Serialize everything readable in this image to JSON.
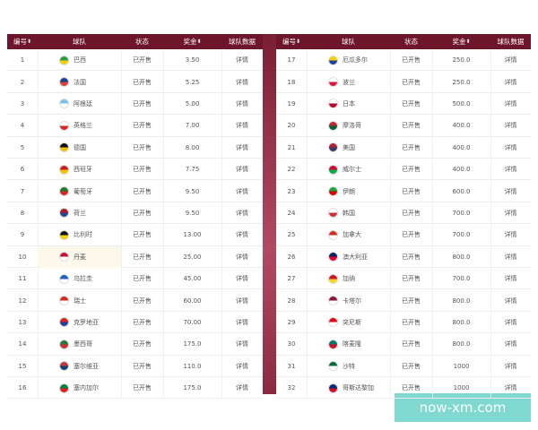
{
  "tables": [
    {
      "headers": [
        "编号",
        "球队",
        "状态",
        "奖金",
        "球队数据"
      ],
      "rows": [
        [
          "1",
          "巴西",
          "已开售",
          "3.50",
          "详情"
        ],
        [
          "2",
          "法国",
          "已开售",
          "5.25",
          "详情"
        ],
        [
          "3",
          "阿根廷",
          "已开售",
          "5.00",
          "详情"
        ],
        [
          "4",
          "英格兰",
          "已开售",
          "7.00",
          "详情"
        ],
        [
          "5",
          "德国",
          "已开售",
          "8.00",
          "详情"
        ],
        [
          "6",
          "西班牙",
          "已开售",
          "7.75",
          "详情"
        ],
        [
          "7",
          "葡萄牙",
          "已开售",
          "9.50",
          "详情"
        ],
        [
          "8",
          "荷兰",
          "已开售",
          "9.50",
          "详情"
        ],
        [
          "9",
          "比利时",
          "已开售",
          "13.00",
          "详情"
        ],
        [
          "10",
          "丹麦",
          "已开售",
          "25.00",
          "详情"
        ],
        [
          "11",
          "乌拉圭",
          "已开售",
          "45.00",
          "详情"
        ],
        [
          "12",
          "瑞士",
          "已开售",
          "60.00",
          "详情"
        ],
        [
          "13",
          "克罗地亚",
          "已开售",
          "70.00",
          "详情"
        ],
        [
          "14",
          "墨西哥",
          "已开售",
          "175.0",
          "详情"
        ],
        [
          "15",
          "塞尔维亚",
          "已开售",
          "110.0",
          "详情"
        ],
        [
          "16",
          "塞内加尔",
          "已开售",
          "175.0",
          "详情"
        ]
      ]
    },
    {
      "headers": [
        "编号",
        "球队",
        "状态",
        "奖金",
        "球队数据"
      ],
      "rows": [
        [
          "17",
          "厄瓜多尔",
          "已开售",
          "250.0",
          "详情"
        ],
        [
          "18",
          "波兰",
          "已开售",
          "250.0",
          "详情"
        ],
        [
          "19",
          "日本",
          "已开售",
          "500.0",
          "详情"
        ],
        [
          "20",
          "摩洛哥",
          "已开售",
          "400.0",
          "详情"
        ],
        [
          "21",
          "美国",
          "已开售",
          "400.0",
          "详情"
        ],
        [
          "22",
          "威尔士",
          "已开售",
          "400.0",
          "详情"
        ],
        [
          "23",
          "伊朗",
          "已开售",
          "600.0",
          "详情"
        ],
        [
          "24",
          "韩国",
          "已开售",
          "700.0",
          "详情"
        ],
        [
          "25",
          "加拿大",
          "已开售",
          "700.0",
          "详情"
        ],
        [
          "26",
          "澳大利亚",
          "已开售",
          "800.0",
          "详情"
        ],
        [
          "27",
          "加纳",
          "已开售",
          "700.0",
          "详情"
        ],
        [
          "28",
          "卡塔尔",
          "已开售",
          "800.0",
          "详情"
        ],
        [
          "29",
          "突尼斯",
          "已开售",
          "800.0",
          "详情"
        ],
        [
          "30",
          "喀麦隆",
          "已开售",
          "800.0",
          "详情"
        ],
        [
          "31",
          "沙特",
          "已开售",
          "1000",
          "详情"
        ],
        [
          "32",
          "哥斯达黎加",
          "已开售",
          "1000",
          "详情"
        ]
      ]
    }
  ],
  "watermark": "now-xm.com"
}
